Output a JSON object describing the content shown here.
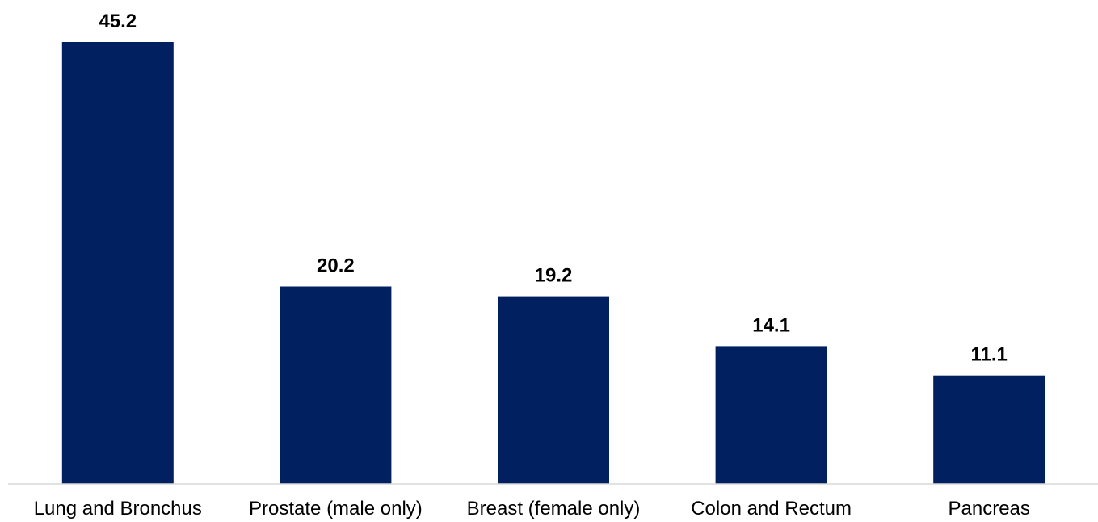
{
  "chart_data": {
    "type": "bar",
    "categories": [
      "Lung and Bronchus",
      "Prostate (male only)",
      "Breast (female only)",
      "Colon and Rectum",
      "Pancreas"
    ],
    "values": [
      45.2,
      20.2,
      19.2,
      14.1,
      11.1
    ],
    "data_labels": [
      "45.2",
      "20.2",
      "19.2",
      "14.1",
      "11.1"
    ],
    "title": "",
    "xlabel": "",
    "ylabel": "",
    "ylim": [
      0,
      45.2
    ],
    "grid": false,
    "legend": "none",
    "bar_color": "#002060",
    "axis_color": "#D9D9D9"
  }
}
